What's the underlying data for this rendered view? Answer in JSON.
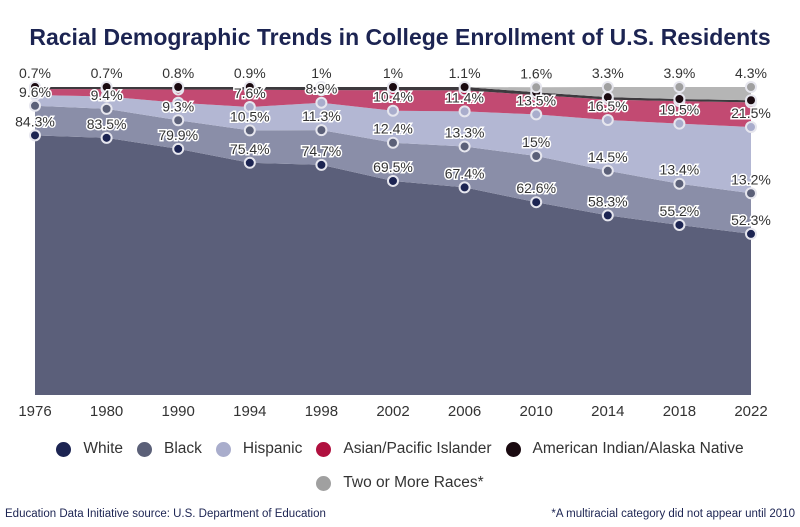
{
  "chart_data": {
    "type": "area",
    "stacked": true,
    "title": "Racial Demographic Trends in College Enrollment of U.S. Residents",
    "categories": [
      "1976",
      "1980",
      "1990",
      "1994",
      "1998",
      "2002",
      "2006",
      "2010",
      "2014",
      "2018",
      "2022"
    ],
    "ylim": [
      0,
      100
    ],
    "grid": false,
    "legend_position": "bottom",
    "series": [
      {
        "name": "White",
        "color": "#1c2452",
        "fill": "#5b5f7a",
        "values": [
          84.3,
          83.5,
          79.9,
          75.4,
          74.7,
          69.5,
          67.4,
          62.6,
          58.3,
          55.2,
          52.3
        ],
        "labels": [
          "84.3%",
          "83.5%",
          "79.9%",
          "75.4%",
          "74.7%",
          "69.5%",
          "67.4%",
          "62.6%",
          "58.3%",
          "55.2%",
          "52.3%"
        ]
      },
      {
        "name": "Black",
        "color": "#5b6078",
        "fill": "#8a8ea8",
        "values": [
          9.6,
          9.4,
          9.3,
          10.5,
          11.3,
          12.4,
          13.3,
          15,
          14.5,
          13.4,
          13.2
        ],
        "labels": [
          "9.6%",
          "9.4%",
          "9.3%",
          "10.5%",
          "11.3%",
          "12.4%",
          "13.3%",
          "15%",
          "14.5%",
          "13.4%",
          "13.2%"
        ]
      },
      {
        "name": "Hispanic",
        "color": "#a9adcc",
        "fill": "#b3b7d3",
        "values": [
          3.5,
          4.0,
          5.7,
          7.6,
          8.9,
          10.4,
          11.4,
          13.5,
          16.5,
          19.5,
          21.5
        ],
        "labels": [
          null,
          null,
          null,
          "7.6%",
          "8.9%",
          "10.4%",
          "11.4%",
          "13.5%",
          "16.5%",
          "19.5%",
          "21.5%"
        ]
      },
      {
        "name": "Asian/Pacific Islander",
        "color": "#b0103f",
        "fill": "#c24a72",
        "values": [
          1.9,
          2.4,
          4.3,
          5.6,
          4.1,
          6.7,
          6.8,
          6.3,
          6.6,
          7.3,
          8.0
        ],
        "labels": [
          null,
          null,
          null,
          null,
          null,
          null,
          null,
          null,
          null,
          null,
          null
        ]
      },
      {
        "name": "American Indian/Alaska Native",
        "color": "#1a0a10",
        "fill": "#3d3a3e",
        "values": [
          0.7,
          0.7,
          0.8,
          0.9,
          1,
          1,
          1.1,
          0.9,
          0.8,
          0.7,
          0.7
        ],
        "labels": [
          "0.7%",
          "0.7%",
          "0.8%",
          "0.9%",
          "1%",
          "1%",
          "1.1%",
          null,
          null,
          null,
          null
        ]
      },
      {
        "name": "Two or More Races*",
        "color": "#a0a0a0",
        "fill": "#b5b5b5",
        "values": [
          0,
          0,
          0,
          0,
          0,
          0,
          0,
          1.6,
          3.3,
          3.9,
          4.3
        ],
        "labels": [
          null,
          null,
          null,
          null,
          null,
          null,
          null,
          "1.6%",
          "3.3%",
          "3.9%",
          "4.3%"
        ]
      }
    ]
  },
  "footer": {
    "source": "Education Data Initiative source: U.S. Department of Education",
    "note": "*A multiracial category did not appear until 2010"
  }
}
